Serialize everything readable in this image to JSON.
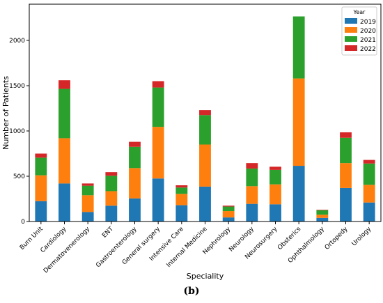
{
  "caption": "(b)",
  "chart_data": {
    "type": "bar",
    "stacked": true,
    "xlabel": "Speciality",
    "ylabel": "Number of Patients",
    "ylim": [
      0,
      2400
    ],
    "yticks": [
      0,
      500,
      1000,
      1500,
      2000
    ],
    "grid": false,
    "legend": {
      "title": "Year",
      "placement": "top-right"
    },
    "categories": [
      "Burn Unit",
      "Cardiology",
      "Dermatovenerology",
      "ENT",
      "Gastroenterology",
      "General surgery",
      "Intensive Care",
      "Internal Medicine",
      "Nephrology",
      "Neurology",
      "Neurosurgery",
      "Obsterics",
      "Ophthalmology",
      "Ortopedy",
      "Urology"
    ],
    "series": [
      {
        "name": "2019",
        "color": "#1f77b4",
        "values": [
          225,
          420,
          105,
          175,
          255,
          475,
          180,
          385,
          45,
          195,
          190,
          615,
          40,
          370,
          210
        ]
      },
      {
        "name": "2020",
        "color": "#ff7f0e",
        "values": [
          285,
          500,
          185,
          160,
          335,
          570,
          125,
          465,
          70,
          195,
          220,
          965,
          35,
          275,
          195
        ]
      },
      {
        "name": "2021",
        "color": "#2ca02c",
        "values": [
          195,
          545,
          105,
          170,
          235,
          435,
          70,
          325,
          50,
          195,
          160,
          685,
          50,
          280,
          235
        ]
      },
      {
        "name": "2022",
        "color": "#d62728",
        "values": [
          45,
          95,
          25,
          40,
          55,
          70,
          25,
          55,
          10,
          60,
          35,
          0,
          5,
          60,
          40
        ]
      }
    ]
  }
}
